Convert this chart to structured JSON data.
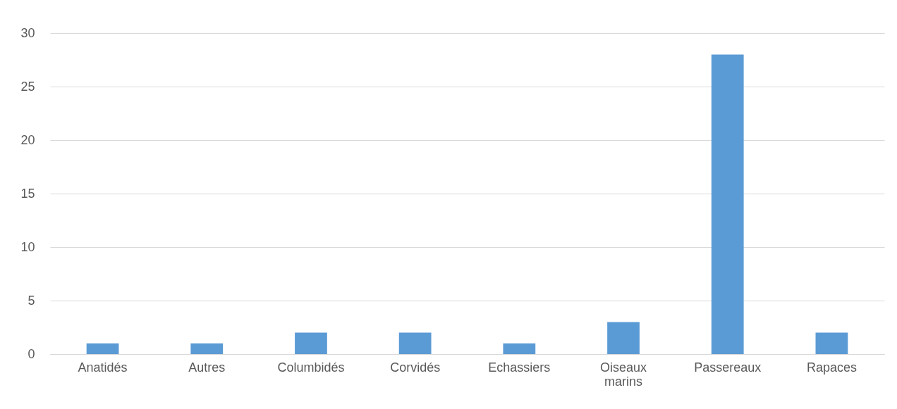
{
  "chart_data": {
    "type": "bar",
    "categories": [
      "Anatidés",
      "Autres",
      "Columbidés",
      "Corvidés",
      "Echassiers",
      "Oiseaux marins",
      "Passereaux",
      "Rapaces"
    ],
    "values": [
      1,
      1,
      2,
      2,
      1,
      3,
      28,
      2
    ],
    "color": "#5b9bd5",
    "ylim": [
      0,
      30
    ],
    "yticks": [
      0,
      5,
      10,
      15,
      20,
      25,
      30
    ],
    "grid": "y"
  }
}
